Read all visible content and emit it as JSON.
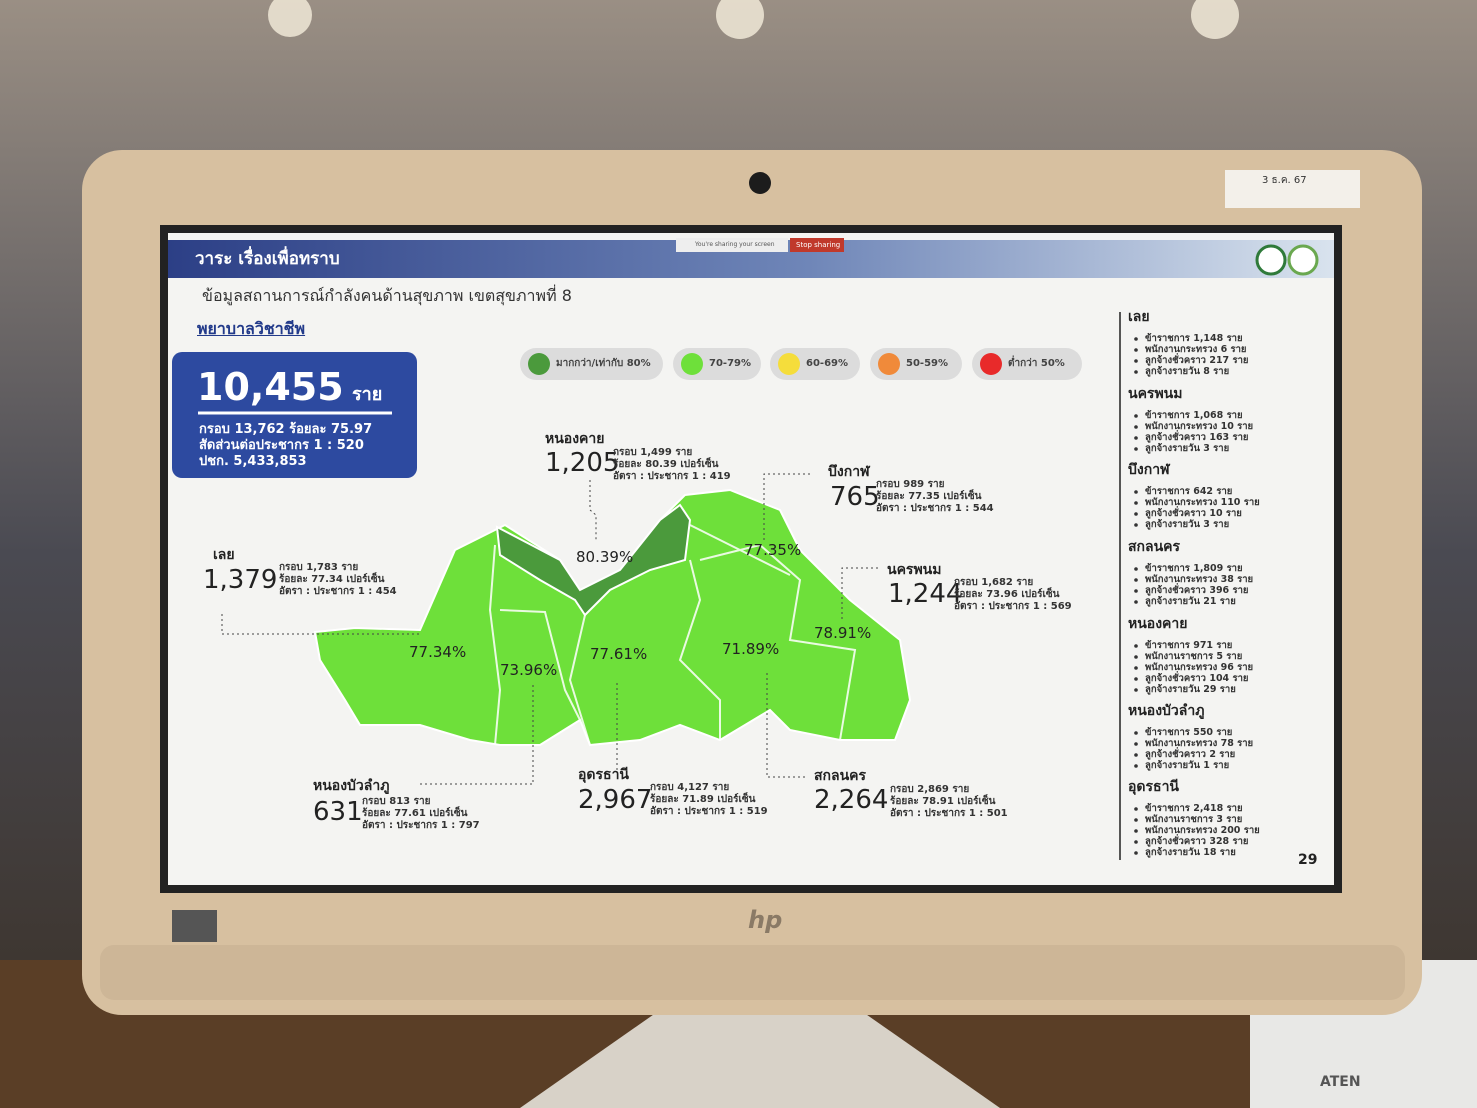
{
  "sticker": "3 ธ.ค. 67",
  "header": {
    "title": "วาระ เรื่องเพื่อทราบ",
    "share_notice": "You're sharing your screen",
    "stop_button": "Stop sharing"
  },
  "slide": {
    "subtitle": "ข้อมูลสถานการณ์กำลังคนด้านสุขภาพ เขตสุขภาพที่ 8",
    "section": "พยาบาลวิชาชีพ",
    "summary": {
      "total": "10,455",
      "unit": "ราย",
      "lines": [
        "กรอบ 13,762 ร้อยละ 75.97",
        "สัดส่วนต่อประชากร 1 : 520",
        "ปชก. 5,433,853"
      ]
    },
    "legend": [
      {
        "label": "มากกว่า/เท่ากับ 80%",
        "color": "#4b9a3c"
      },
      {
        "label": "70-79%",
        "color": "#6ee03a"
      },
      {
        "label": "60-69%",
        "color": "#f5dd3b"
      },
      {
        "label": "50-59%",
        "color": "#f08a3a"
      },
      {
        "label": "ต่ำกว่า 50%",
        "color": "#e82a2a"
      }
    ],
    "provinces": [
      {
        "name": "หนองคาย",
        "count": "1,205",
        "details": [
          "กรอบ 1,499 ราย",
          "ร้อยละ 80.39 เปอร์เซ็น",
          "อัตรา : ประชากร 1 : 419"
        ],
        "map_label": "80.39%"
      },
      {
        "name": "บึงกาฬ",
        "count": "765",
        "details": [
          "กรอบ 989 ราย",
          "ร้อยละ 77.35 เปอร์เซ็น",
          "อัตรา : ประชากร 1 : 544"
        ],
        "map_label": "77.35%"
      },
      {
        "name": "เลย",
        "count": "1,379",
        "details": [
          "กรอบ 1,783 ราย",
          "ร้อยละ 77.34 เปอร์เซ็น",
          "อัตรา : ประชากร 1 : 454"
        ],
        "map_label": "77.34%"
      },
      {
        "name": "นครพนม",
        "count": "1,244",
        "details": [
          "กรอบ 1,682 ราย",
          "ร้อยละ 73.96 เปอร์เซ็น",
          "อัตรา : ประชากร 1 : 569"
        ],
        "map_label": "73.96%"
      },
      {
        "name": "หนองบัวลำภู",
        "count": "631",
        "details": [
          "กรอบ 813 ราย",
          "ร้อยละ 77.61 เปอร์เซ็น",
          "อัตรา : ประชากร 1 : 797"
        ],
        "map_label": "77.61%"
      },
      {
        "name": "อุดรธานี",
        "count": "2,967",
        "details": [
          "กรอบ 4,127 ราย",
          "ร้อยละ 71.89 เปอร์เซ็น",
          "อัตรา : ประชากร 1 : 519"
        ],
        "map_label": "71.89%"
      },
      {
        "name": "สกลนคร",
        "count": "2,264",
        "details": [
          "กรอบ 2,869 ราย",
          "ร้อยละ 78.91 เปอร์เซ็น",
          "อัตรา : ประชากร 1 : 501"
        ],
        "map_label": "78.91%"
      }
    ],
    "sidebar": [
      {
        "name": "เลย",
        "items": [
          "ข้าราชการ 1,148 ราย",
          "พนักงานกระทรวง 6 ราย",
          "ลูกจ้างชั่วคราว 217 ราย",
          "ลูกจ้างรายวัน 8 ราย"
        ]
      },
      {
        "name": "นครพนม",
        "items": [
          "ข้าราชการ 1,068 ราย",
          "พนักงานกระทรวง 10 ราย",
          "ลูกจ้างชั่วคราว 163 ราย",
          "ลูกจ้างรายวัน 3 ราย"
        ]
      },
      {
        "name": "บึงกาฬ",
        "items": [
          "ข้าราชการ 642 ราย",
          "พนักงานกระทรวง 110 ราย",
          "ลูกจ้างชั่วคราว 10 ราย",
          "ลูกจ้างรายวัน 3 ราย"
        ]
      },
      {
        "name": "สกลนคร",
        "items": [
          "ข้าราชการ 1,809 ราย",
          "พนักงานกระทรวง 38 ราย",
          "ลูกจ้างชั่วคราว 396 ราย",
          "ลูกจ้างรายวัน 21 ราย"
        ]
      },
      {
        "name": "หนองคาย",
        "items": [
          "ข้าราชการ 971 ราย",
          "พนักงานราชการ 5 ราย",
          "พนักงานกระทรวง 96 ราย",
          "ลูกจ้างชั่วคราว 104 ราย",
          "ลูกจ้างรายวัน 29 ราย"
        ]
      },
      {
        "name": "หนองบัวลำภู",
        "items": [
          "ข้าราชการ 550 ราย",
          "พนักงานกระทรวง 78 ราย",
          "ลูกจ้างชั่วคราว 2 ราย",
          "ลูกจ้างรายวัน 1 ราย"
        ]
      },
      {
        "name": "อุดรธานี",
        "items": [
          "ข้าราชการ 2,418 ราย",
          "พนักงานราชการ 3 ราย",
          "พนักงานกระทรวง 200 ราย",
          "ลูกจ้างชั่วคราว 328 ราย",
          "ลูกจ้างรายวัน 18 ราย"
        ]
      }
    ],
    "page_number": "29"
  },
  "brand": "hp",
  "device_label": "ATEN"
}
